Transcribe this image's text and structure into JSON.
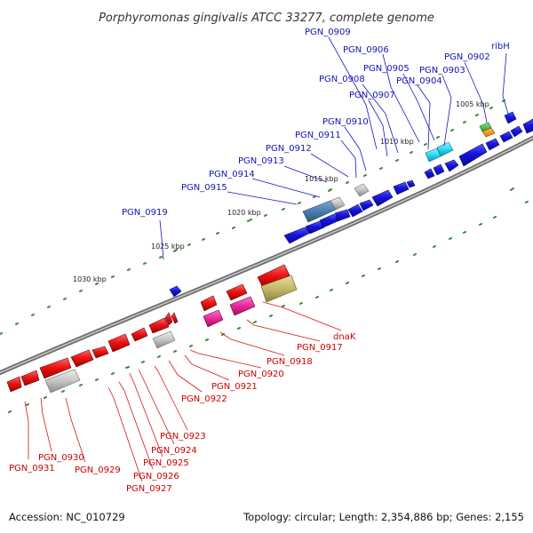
{
  "title": "Porphyromonas gingivalis ATCC 33277, complete genome",
  "footer": {
    "accession": "Accession: NC_010729",
    "topology": "Topology: circular; Length: 2,354,886 bp; Genes: 2,155"
  },
  "colors": {
    "forward_gene": "#1414d8",
    "reverse_gene": "#ec1414",
    "forward_label": "#1414b4",
    "reverse_label": "#cc0000",
    "backbone": "#7a7a7a",
    "gc_dots": "#2e8b2e"
  },
  "ticks": [
    "1005 kbp",
    "1010 kbp",
    "1015 kbp",
    "1020 kbp",
    "1025 kbp",
    "1030 kbp"
  ],
  "forward_labels": [
    "PGN_0909",
    "PGN_0906",
    "PGN_0905",
    "PGN_0903",
    "PGN_0902",
    "ribH",
    "PGN_0908",
    "PGN_0907",
    "PGN_0904",
    "PGN_0910",
    "PGN_0911",
    "PGN_0912",
    "PGN_0913",
    "PGN_0914",
    "PGN_0915",
    "PGN_0919"
  ],
  "reverse_labels": [
    "dnaK",
    "PGN_0917",
    "PGN_0918",
    "PGN_0920",
    "PGN_0921",
    "PGN_0922",
    "PGN_0923",
    "PGN_0924",
    "PGN_0925",
    "PGN_0926",
    "PGN_0927",
    "PGN_0929",
    "PGN_0930",
    "PGN_0931"
  ]
}
